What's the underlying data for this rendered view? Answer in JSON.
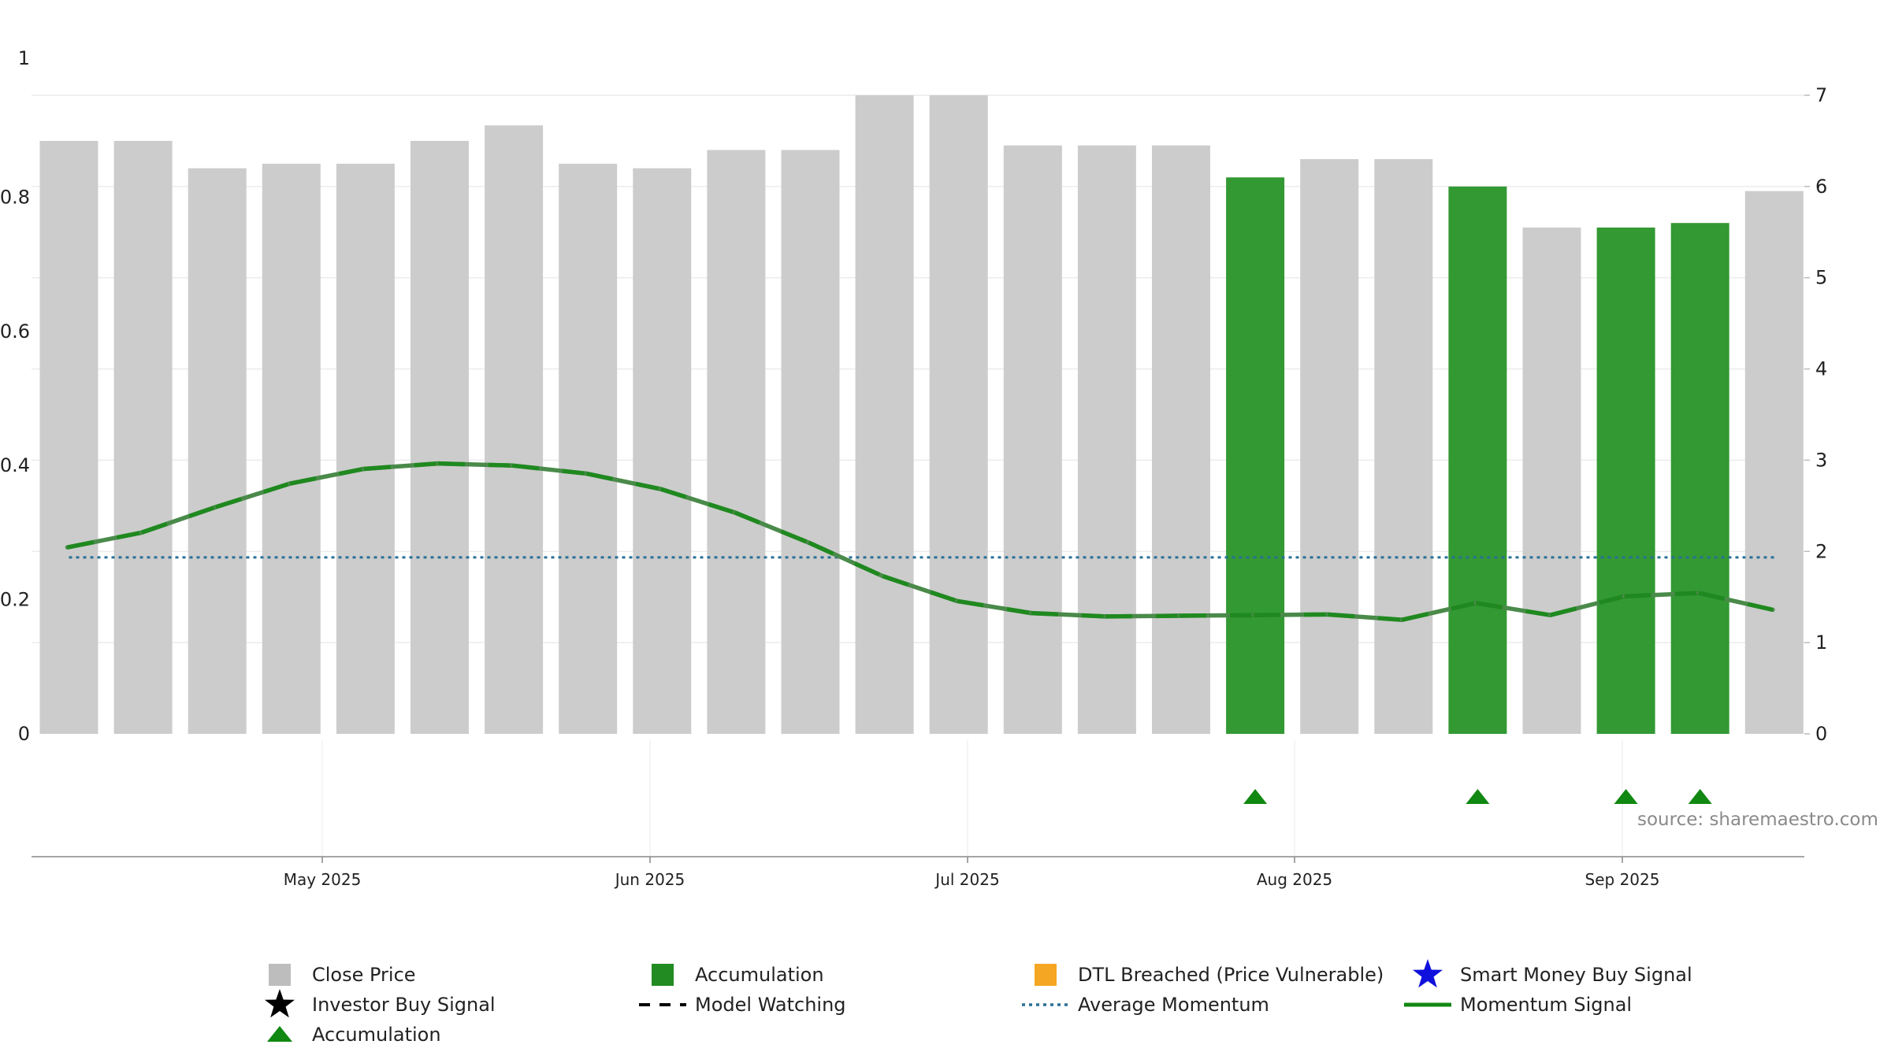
{
  "chart_data": {
    "type": "bar",
    "title": "",
    "x_ticks": [
      "May 2025",
      "Jun 2025",
      "Jul 2025",
      "Aug 2025",
      "Sep 2025"
    ],
    "left_axis": {
      "ticks": [
        "0",
        "0.2",
        "0.4",
        "0.6",
        "0.8",
        "1"
      ],
      "ylim": [
        0,
        1
      ]
    },
    "right_axis": {
      "ticks": [
        "0",
        "1",
        "2",
        "3",
        "4",
        "5",
        "6",
        "7"
      ],
      "ylim": [
        0,
        7
      ]
    },
    "close_price": [
      6.5,
      6.5,
      6.2,
      6.25,
      6.25,
      6.5,
      6.67,
      6.25,
      6.2,
      6.4,
      6.4,
      7.0,
      7.0,
      6.45,
      6.45,
      6.45,
      6.1,
      6.3,
      6.3,
      6.0,
      5.55,
      5.55,
      5.6,
      5.95
    ],
    "accumulation_bars": [
      16,
      19,
      21,
      22
    ],
    "momentum_signal": [
      0.278,
      0.3,
      0.338,
      0.373,
      0.395,
      0.403,
      0.4,
      0.388,
      0.365,
      0.33,
      0.285,
      0.235,
      0.198,
      0.18,
      0.175,
      0.176,
      0.177,
      0.178,
      0.17,
      0.195,
      0.177,
      0.205,
      0.21,
      0.185
    ],
    "average_momentum": 0.263,
    "accumulation_markers": [
      16,
      19,
      21,
      22
    ],
    "source_note": "source: sharemaestro.com",
    "legend": [
      {
        "key": "close",
        "label": "Close Price"
      },
      {
        "key": "accum_bar",
        "label": "Accumulation"
      },
      {
        "key": "dtl",
        "label": "DTL Breached (Price Vulnerable)"
      },
      {
        "key": "smart",
        "label": "Smart Money Buy Signal"
      },
      {
        "key": "investor",
        "label": "Investor Buy Signal"
      },
      {
        "key": "watching",
        "label": "Model Watching"
      },
      {
        "key": "avg",
        "label": "Average Momentum"
      },
      {
        "key": "momentum",
        "label": "Momentum Signal"
      },
      {
        "key": "accum_marker",
        "label": "Accumulation"
      }
    ],
    "colors": {
      "close": "#cccccc",
      "accumulation": "#339933",
      "momentum": "#4a8a4a",
      "momentum_emphasis": "#118811",
      "average": "#2a6f97",
      "dtl": "#f5a623",
      "smart": "#1010dd",
      "investor": "#000000",
      "marker": "#118811",
      "axis_text": "#222222",
      "grid": "#ececec",
      "source": "#8a8a8a"
    }
  }
}
